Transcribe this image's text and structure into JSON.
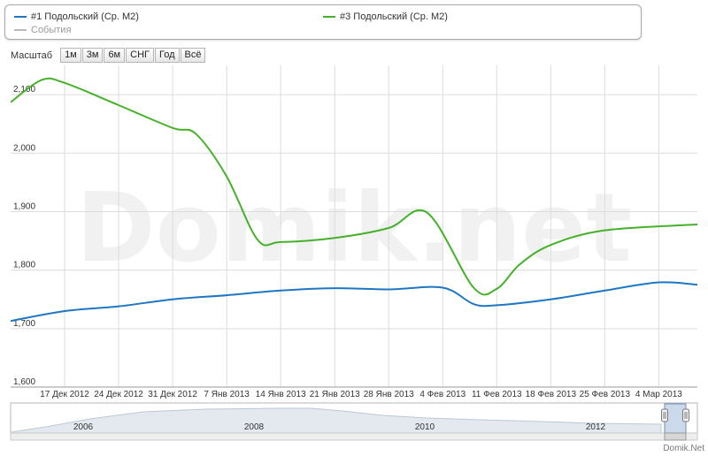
{
  "legend": {
    "items": [
      {
        "label": "#1 Подольский (Ср. М2)",
        "color": "#1f77c4"
      },
      {
        "label": "#3 Подольский (Ср. М2)",
        "color": "#45b12a"
      },
      {
        "label": "События",
        "color": "#bbbbbb"
      }
    ]
  },
  "scale": {
    "label": "Масштаб",
    "buttons": [
      "1м",
      "3м",
      "6м",
      "СНГ",
      "Год",
      "Всё"
    ]
  },
  "watermark": "Domik.net",
  "footer": "Domik.Net",
  "chart_data": {
    "type": "line",
    "ylim": [
      1600,
      2150
    ],
    "yticks": [
      1600,
      1700,
      1800,
      1900,
      2000,
      2100
    ],
    "ytick_labels": [
      "1,600",
      "1,700",
      "1,800",
      "1,900",
      "2,000",
      "2,100"
    ],
    "xlim": [
      "2012-12-10",
      "2013-03-09"
    ],
    "x_ticks": [
      {
        "date": "2012-12-17",
        "label": "17 Дек 2012"
      },
      {
        "date": "2012-12-24",
        "label": "24 Дек 2012"
      },
      {
        "date": "2012-12-31",
        "label": "31 Дек 2012"
      },
      {
        "date": "2013-01-07",
        "label": "7 Янв 2013"
      },
      {
        "date": "2013-01-14",
        "label": "14 Янв 2013"
      },
      {
        "date": "2013-01-21",
        "label": "21 Янв 2013"
      },
      {
        "date": "2013-01-28",
        "label": "28 Янв 2013"
      },
      {
        "date": "2013-02-04",
        "label": "4 Фев 2013"
      },
      {
        "date": "2013-02-11",
        "label": "11 Фев 2013"
      },
      {
        "date": "2013-02-18",
        "label": "18 Фев 2013"
      },
      {
        "date": "2013-02-25",
        "label": "25 Фев 2013"
      },
      {
        "date": "2013-03-04",
        "label": "4 Мар 2013"
      }
    ],
    "grid": true,
    "series": [
      {
        "name": "#1 Подольский (Ср. М2)",
        "color": "#1f77c4",
        "points": [
          [
            "2012-12-10",
            1713
          ],
          [
            "2012-12-17",
            1730
          ],
          [
            "2012-12-24",
            1738
          ],
          [
            "2012-12-31",
            1750
          ],
          [
            "2013-01-07",
            1757
          ],
          [
            "2013-01-14",
            1765
          ],
          [
            "2013-01-21",
            1769
          ],
          [
            "2013-01-28",
            1767
          ],
          [
            "2013-02-04",
            1770
          ],
          [
            "2013-02-08",
            1742
          ],
          [
            "2013-02-11",
            1740
          ],
          [
            "2013-02-18",
            1750
          ],
          [
            "2013-02-25",
            1765
          ],
          [
            "2013-03-04",
            1779
          ],
          [
            "2013-03-09",
            1775
          ]
        ]
      },
      {
        "name": "#3 Подольский (Ср. М2)",
        "color": "#45b12a",
        "points": [
          [
            "2012-12-10",
            2087
          ],
          [
            "2012-12-14",
            2125
          ],
          [
            "2012-12-17",
            2120
          ],
          [
            "2012-12-24",
            2082
          ],
          [
            "2012-12-31",
            2043
          ],
          [
            "2013-01-03",
            2033
          ],
          [
            "2013-01-07",
            1960
          ],
          [
            "2013-01-11",
            1852
          ],
          [
            "2013-01-14",
            1848
          ],
          [
            "2013-01-21",
            1855
          ],
          [
            "2013-01-28",
            1872
          ],
          [
            "2013-02-02",
            1898
          ],
          [
            "2013-02-08",
            1770
          ],
          [
            "2013-02-11",
            1768
          ],
          [
            "2013-02-14",
            1810
          ],
          [
            "2013-02-18",
            1843
          ],
          [
            "2013-02-25",
            1868
          ],
          [
            "2013-03-09",
            1878
          ]
        ]
      }
    ]
  },
  "navigator": {
    "year_labels": [
      "2006",
      "2008",
      "2010",
      "2012"
    ]
  }
}
